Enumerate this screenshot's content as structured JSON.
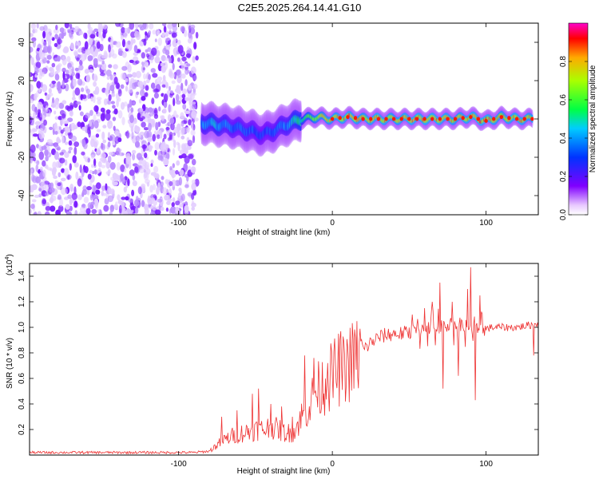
{
  "title": "C2E5.2025.264.14.41.G10",
  "chart_data": [
    {
      "type": "heatmap",
      "name": "spectrogram",
      "xlabel": "Height of straight line (km)",
      "ylabel": "Frequency (Hz)",
      "xlim": [
        -197,
        134
      ],
      "ylim": [
        -50,
        50
      ],
      "xticks": [
        -100,
        0,
        100
      ],
      "yticks": [
        -40,
        -20,
        0,
        20,
        40
      ],
      "colorbar": {
        "label": "Normalized spectral amplitude",
        "range": [
          0,
          1
        ],
        "ticks": [
          0.0,
          0.2,
          0.4,
          0.6,
          0.8
        ]
      },
      "noise_region_x": [
        -197,
        -88
      ],
      "ridge": {
        "x": [
          -85,
          -75,
          -65,
          -55,
          -45,
          -38,
          -30,
          -20,
          -10,
          0,
          10,
          20,
          30,
          40,
          50,
          60,
          70,
          80,
          90,
          100,
          110,
          120,
          130
        ],
        "y": [
          -2,
          -3,
          -4,
          -6,
          -8,
          -6,
          -3,
          0,
          1,
          0,
          1,
          0,
          0,
          0,
          0,
          0,
          0,
          0,
          1,
          -1,
          1,
          0,
          0
        ],
        "amplitude": [
          0.45,
          0.5,
          0.4,
          0.4,
          0.35,
          0.4,
          0.45,
          0.6,
          0.8,
          0.85,
          0.9,
          0.85,
          0.9,
          0.85,
          0.9,
          0.9,
          0.9,
          0.85,
          0.9,
          0.9,
          0.85,
          0.9,
          0.85
        ]
      }
    },
    {
      "type": "line",
      "name": "snr",
      "xlabel": "Height of straight line (km)",
      "ylabel": "SNR (10 * v/v)",
      "scale_label": "(x10",
      "scale_exponent": "4",
      "xlim": [
        -197,
        134
      ],
      "ylim": [
        0,
        1.5
      ],
      "xticks": [
        -100,
        0,
        100
      ],
      "yticks": [
        0.2,
        0.4,
        0.6,
        0.8,
        1.0,
        1.2,
        1.4
      ],
      "series": [
        {
          "name": "SNR",
          "color": "#ee3333",
          "x": [
            -197,
            -180,
            -160,
            -140,
            -120,
            -100,
            -90,
            -80,
            -75,
            -70,
            -65,
            -60,
            -55,
            -50,
            -45,
            -40,
            -35,
            -30,
            -25,
            -20,
            -15,
            -10,
            -5,
            0,
            5,
            10,
            15,
            20,
            25,
            30,
            35,
            40,
            45,
            50,
            55,
            60,
            65,
            70,
            75,
            80,
            85,
            90,
            95,
            100,
            105,
            110,
            115,
            120,
            125,
            130,
            134
          ],
          "y": [
            0.02,
            0.02,
            0.02,
            0.02,
            0.02,
            0.02,
            0.02,
            0.03,
            0.08,
            0.12,
            0.15,
            0.17,
            0.18,
            0.2,
            0.2,
            0.22,
            0.2,
            0.17,
            0.18,
            0.3,
            0.4,
            0.5,
            0.56,
            0.62,
            0.68,
            0.72,
            0.75,
            0.82,
            0.88,
            0.92,
            0.94,
            0.95,
            0.95,
            0.96,
            0.97,
            1.0,
            1.0,
            1.0,
            1.02,
            1.03,
            1.03,
            1.0,
            0.98,
            0.99,
            1.0,
            1.0,
            1.0,
            1.0,
            1.01,
            1.02,
            1.03
          ],
          "spikes": [
            {
              "x": -72,
              "y": 0.3
            },
            {
              "x": -62,
              "y": 0.35
            },
            {
              "x": -52,
              "y": 0.48
            },
            {
              "x": -48,
              "y": 0.52
            },
            {
              "x": -40,
              "y": 0.4
            },
            {
              "x": -33,
              "y": 0.38
            },
            {
              "x": -26,
              "y": 0.3
            },
            {
              "x": -18,
              "y": 0.78
            },
            {
              "x": -12,
              "y": 0.76
            },
            {
              "x": -3,
              "y": 0.72
            },
            {
              "x": 8,
              "y": 0.78
            },
            {
              "x": 15,
              "y": 0.92
            },
            {
              "x": 52,
              "y": 1.1
            },
            {
              "x": 60,
              "y": 1.15
            },
            {
              "x": 65,
              "y": 1.2
            },
            {
              "x": 70,
              "y": 1.35
            },
            {
              "x": 72,
              "y": 0.52
            },
            {
              "x": 78,
              "y": 1.2
            },
            {
              "x": 82,
              "y": 0.62
            },
            {
              "x": 88,
              "y": 1.3
            },
            {
              "x": 90,
              "y": 1.47
            },
            {
              "x": 93,
              "y": 0.43
            },
            {
              "x": 96,
              "y": 1.25
            },
            {
              "x": 131,
              "y": 0.78
            }
          ]
        }
      ]
    }
  ]
}
